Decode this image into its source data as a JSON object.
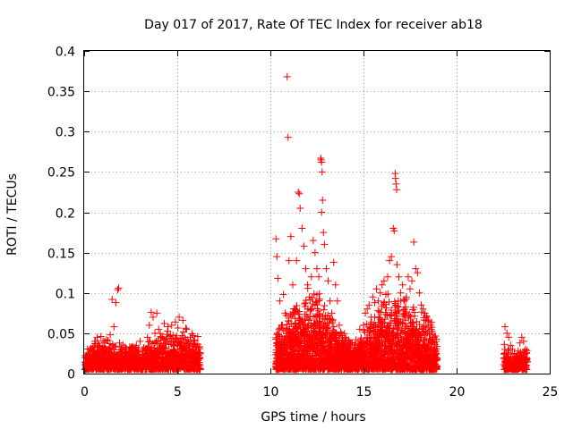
{
  "chart_data": {
    "type": "scatter",
    "title": "Day 017 of 2017, Rate Of TEC Index for receiver ab18",
    "xlabel": "GPS time / hours",
    "ylabel": "ROTI / TECUs",
    "xlim": [
      0,
      25
    ],
    "ylim": [
      0,
      0.4
    ],
    "xticks": [
      0,
      5,
      10,
      15,
      20,
      25
    ],
    "xtick_labels": [
      "0",
      "5",
      "10",
      "15",
      "20",
      "25"
    ],
    "yticks": [
      0,
      0.05,
      0.1,
      0.15,
      0.2,
      0.25,
      0.3,
      0.35,
      0.4
    ],
    "ytick_labels": [
      "0",
      "0.05",
      "0.1",
      "0.15",
      "0.2",
      "0.25",
      "0.3",
      "0.35",
      "0.4"
    ],
    "grid": true,
    "marker": "plus",
    "color": "#ff0000",
    "series": [
      {
        "points": [
          [
            0.1,
            0.012
          ],
          [
            0.2,
            0.022
          ],
          [
            0.3,
            0.03
          ],
          [
            0.4,
            0.018
          ],
          [
            0.5,
            0.028
          ],
          [
            0.6,
            0.04
          ],
          [
            0.7,
            0.045
          ],
          [
            0.8,
            0.035
          ],
          [
            0.9,
            0.046
          ],
          [
            1.0,
            0.03
          ],
          [
            1.1,
            0.038
          ],
          [
            1.2,
            0.042
          ],
          [
            1.3,
            0.025
          ],
          [
            1.4,
            0.048
          ],
          [
            1.5,
            0.092
          ],
          [
            1.6,
            0.058
          ],
          [
            1.7,
            0.088
          ],
          [
            1.8,
            0.104
          ],
          [
            1.85,
            0.106
          ],
          [
            1.9,
            0.038
          ],
          [
            2.0,
            0.03
          ],
          [
            2.2,
            0.02
          ],
          [
            2.4,
            0.028
          ],
          [
            2.6,
            0.024
          ],
          [
            2.8,
            0.035
          ],
          [
            3.0,
            0.04
          ],
          [
            3.2,
            0.032
          ],
          [
            3.4,
            0.045
          ],
          [
            3.5,
            0.06
          ],
          [
            3.6,
            0.076
          ],
          [
            3.7,
            0.07
          ],
          [
            3.8,
            0.05
          ],
          [
            3.9,
            0.075
          ],
          [
            4.0,
            0.055
          ],
          [
            4.2,
            0.045
          ],
          [
            4.3,
            0.062
          ],
          [
            4.5,
            0.058
          ],
          [
            4.7,
            0.06
          ],
          [
            4.9,
            0.064
          ],
          [
            5.1,
            0.07
          ],
          [
            5.3,
            0.066
          ],
          [
            5.5,
            0.055
          ],
          [
            5.7,
            0.045
          ],
          [
            5.9,
            0.04
          ],
          [
            6.1,
            0.046
          ],
          [
            6.2,
            0.02
          ],
          [
            0.3,
            0.008
          ],
          [
            1.0,
            0.01
          ],
          [
            2.0,
            0.01
          ],
          [
            3.0,
            0.012
          ],
          [
            4.0,
            0.015
          ],
          [
            5.0,
            0.012
          ],
          [
            6.0,
            0.012
          ],
          [
            0.6,
            0.02
          ],
          [
            1.4,
            0.018
          ],
          [
            2.5,
            0.016
          ],
          [
            3.3,
            0.022
          ],
          [
            4.4,
            0.025
          ],
          [
            5.2,
            0.03
          ],
          [
            5.8,
            0.028
          ],
          [
            10.3,
            0.167
          ],
          [
            10.35,
            0.145
          ],
          [
            10.4,
            0.118
          ],
          [
            10.5,
            0.09
          ],
          [
            10.6,
            0.06
          ],
          [
            10.7,
            0.098
          ],
          [
            10.8,
            0.075
          ],
          [
            10.9,
            0.368
          ],
          [
            10.95,
            0.293
          ],
          [
            11.0,
            0.14
          ],
          [
            11.1,
            0.17
          ],
          [
            11.2,
            0.11
          ],
          [
            11.3,
            0.08
          ],
          [
            11.4,
            0.14
          ],
          [
            11.5,
            0.225
          ],
          [
            11.55,
            0.223
          ],
          [
            11.6,
            0.205
          ],
          [
            11.7,
            0.18
          ],
          [
            11.8,
            0.158
          ],
          [
            11.9,
            0.13
          ],
          [
            12.0,
            0.11
          ],
          [
            12.1,
            0.095
          ],
          [
            12.2,
            0.12
          ],
          [
            12.3,
            0.165
          ],
          [
            12.4,
            0.15
          ],
          [
            12.5,
            0.13
          ],
          [
            12.6,
            0.12
          ],
          [
            12.7,
            0.267
          ],
          [
            12.72,
            0.265
          ],
          [
            12.75,
            0.262
          ],
          [
            12.78,
            0.25
          ],
          [
            12.8,
            0.215
          ],
          [
            12.75,
            0.2
          ],
          [
            12.85,
            0.175
          ],
          [
            12.9,
            0.16
          ],
          [
            13.0,
            0.13
          ],
          [
            13.1,
            0.115
          ],
          [
            13.2,
            0.09
          ],
          [
            13.3,
            0.075
          ],
          [
            13.4,
            0.138
          ],
          [
            13.5,
            0.11
          ],
          [
            13.6,
            0.09
          ],
          [
            13.7,
            0.06
          ],
          [
            13.8,
            0.05
          ],
          [
            14.0,
            0.045
          ],
          [
            14.2,
            0.04
          ],
          [
            14.4,
            0.038
          ],
          [
            14.6,
            0.042
          ],
          [
            14.8,
            0.055
          ],
          [
            15.0,
            0.06
          ],
          [
            15.1,
            0.075
          ],
          [
            15.2,
            0.08
          ],
          [
            15.3,
            0.085
          ],
          [
            15.4,
            0.07
          ],
          [
            15.5,
            0.095
          ],
          [
            15.6,
            0.088
          ],
          [
            15.7,
            0.105
          ],
          [
            15.8,
            0.09
          ],
          [
            15.9,
            0.1
          ],
          [
            16.0,
            0.11
          ],
          [
            16.1,
            0.115
          ],
          [
            16.2,
            0.098
          ],
          [
            16.3,
            0.12
          ],
          [
            16.4,
            0.14
          ],
          [
            16.5,
            0.145
          ],
          [
            16.6,
            0.18
          ],
          [
            16.65,
            0.177
          ],
          [
            16.7,
            0.248
          ],
          [
            16.72,
            0.242
          ],
          [
            16.75,
            0.235
          ],
          [
            16.78,
            0.228
          ],
          [
            16.8,
            0.135
          ],
          [
            16.9,
            0.12
          ],
          [
            17.0,
            0.1
          ],
          [
            17.1,
            0.11
          ],
          [
            17.2,
            0.09
          ],
          [
            17.3,
            0.095
          ],
          [
            17.4,
            0.12
          ],
          [
            17.5,
            0.105
          ],
          [
            17.6,
            0.115
          ],
          [
            17.7,
            0.163
          ],
          [
            17.8,
            0.13
          ],
          [
            17.9,
            0.125
          ],
          [
            18.0,
            0.1
          ],
          [
            18.1,
            0.085
          ],
          [
            18.2,
            0.08
          ],
          [
            18.3,
            0.075
          ],
          [
            18.4,
            0.07
          ],
          [
            18.5,
            0.065
          ],
          [
            18.6,
            0.06
          ],
          [
            18.7,
            0.05
          ],
          [
            18.8,
            0.045
          ],
          [
            18.9,
            0.04
          ],
          [
            10.4,
            0.02
          ],
          [
            10.8,
            0.03
          ],
          [
            11.2,
            0.025
          ],
          [
            11.6,
            0.04
          ],
          [
            12.0,
            0.035
          ],
          [
            12.4,
            0.05
          ],
          [
            12.8,
            0.045
          ],
          [
            13.2,
            0.03
          ],
          [
            13.6,
            0.025
          ],
          [
            14.0,
            0.02
          ],
          [
            14.5,
            0.018
          ],
          [
            15.0,
            0.025
          ],
          [
            15.5,
            0.035
          ],
          [
            16.0,
            0.04
          ],
          [
            16.5,
            0.05
          ],
          [
            17.0,
            0.045
          ],
          [
            17.5,
            0.04
          ],
          [
            18.0,
            0.035
          ],
          [
            18.5,
            0.03
          ],
          [
            18.9,
            0.025
          ],
          [
            22.6,
            0.058
          ],
          [
            22.7,
            0.05
          ],
          [
            22.8,
            0.045
          ],
          [
            22.9,
            0.035
          ],
          [
            23.0,
            0.03
          ],
          [
            23.1,
            0.025
          ],
          [
            23.2,
            0.02
          ],
          [
            23.3,
            0.028
          ],
          [
            23.4,
            0.038
          ],
          [
            23.5,
            0.045
          ],
          [
            23.6,
            0.04
          ],
          [
            23.7,
            0.03
          ],
          [
            23.75,
            0.02
          ],
          [
            22.65,
            0.015
          ],
          [
            22.9,
            0.012
          ],
          [
            23.2,
            0.01
          ],
          [
            23.5,
            0.012
          ],
          [
            23.7,
            0.01
          ]
        ],
        "bands": [
          {
            "x_from": 0.05,
            "x_to": 6.25,
            "floor": 0.005,
            "ceil": [
              [
                0.0,
                0.025
              ],
              [
                1.0,
                0.035
              ],
              [
                2.0,
                0.03
              ],
              [
                3.0,
                0.028
              ],
              [
                4.0,
                0.04
              ],
              [
                5.0,
                0.045
              ],
              [
                6.25,
                0.04
              ]
            ],
            "density": 6
          },
          {
            "x_from": 10.3,
            "x_to": 18.95,
            "floor": 0.005,
            "ceil": [
              [
                10.3,
                0.04
              ],
              [
                11.0,
                0.06
              ],
              [
                12.0,
                0.08
              ],
              [
                12.8,
                0.075
              ],
              [
                13.5,
                0.05
              ],
              [
                14.5,
                0.03
              ],
              [
                15.5,
                0.055
              ],
              [
                16.5,
                0.08
              ],
              [
                17.5,
                0.07
              ],
              [
                18.95,
                0.045
              ]
            ],
            "density": 9
          },
          {
            "x_from": 22.55,
            "x_to": 23.8,
            "floor": 0.005,
            "ceil": [
              [
                22.55,
                0.03
              ],
              [
                23.0,
                0.02
              ],
              [
                23.8,
                0.025
              ]
            ],
            "density": 6
          }
        ]
      }
    ]
  }
}
